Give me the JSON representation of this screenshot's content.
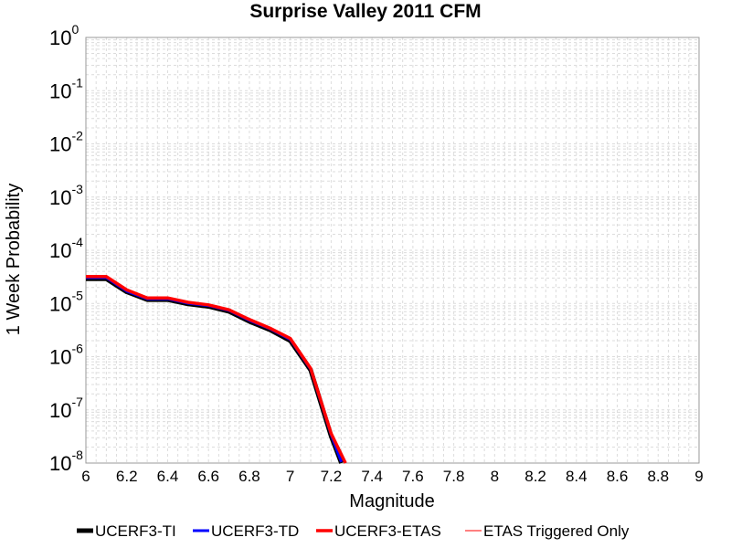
{
  "chart_data": {
    "type": "line",
    "title": "Surprise Valley 2011 CFM",
    "xlabel": "Magnitude",
    "ylabel": "1 Week Probability",
    "xlim": [
      6,
      9
    ],
    "ylim": [
      1e-08,
      1
    ],
    "yscale": "log",
    "grid": true,
    "legend_position": "bottom",
    "x_ticks": [
      "6",
      "6.2",
      "6.4",
      "6.6",
      "6.8",
      "7",
      "7.2",
      "7.4",
      "7.6",
      "7.8",
      "8",
      "8.2",
      "8.4",
      "8.6",
      "8.8",
      "9"
    ],
    "y_ticks": [
      {
        "base": "10",
        "exp": "0"
      },
      {
        "base": "10",
        "exp": "-1"
      },
      {
        "base": "10",
        "exp": "-2"
      },
      {
        "base": "10",
        "exp": "-3"
      },
      {
        "base": "10",
        "exp": "-4"
      },
      {
        "base": "10",
        "exp": "-5"
      },
      {
        "base": "10",
        "exp": "-6"
      },
      {
        "base": "10",
        "exp": "-7"
      },
      {
        "base": "10",
        "exp": "-8"
      }
    ],
    "series": [
      {
        "name": "UCERF3-TI",
        "color": "#000000",
        "x": [
          6.0,
          6.1,
          6.2,
          6.3,
          6.4,
          6.5,
          6.6,
          6.7,
          6.8,
          6.9,
          7.0,
          7.1,
          7.2,
          7.25
        ],
        "y": [
          2.9e-05,
          2.9e-05,
          1.65e-05,
          1.18e-05,
          1.18e-05,
          9.8e-06,
          8.8e-06,
          7.1e-06,
          4.6e-06,
          3.2e-06,
          2e-06,
          5.6e-07,
          3.2e-08,
          1e-08
        ]
      },
      {
        "name": "UCERF3-TD",
        "color": "#0000ff",
        "x": [
          6.0,
          6.1,
          6.2,
          6.3,
          6.4,
          6.5,
          6.6,
          6.7,
          6.8,
          6.9,
          7.0,
          7.1,
          7.2,
          7.25
        ],
        "y": [
          3.05e-05,
          3.05e-05,
          1.7e-05,
          1.22e-05,
          1.22e-05,
          1.01e-05,
          9.1e-06,
          7.4e-06,
          4.8e-06,
          3.35e-06,
          2.1e-06,
          5.8e-07,
          3.4e-08,
          1.05e-08
        ]
      },
      {
        "name": "UCERF3-ETAS",
        "color": "#ff0000",
        "x": [
          6.0,
          6.1,
          6.2,
          6.3,
          6.4,
          6.5,
          6.6,
          6.7,
          6.8,
          6.9,
          7.0,
          7.1,
          7.2,
          7.27
        ],
        "y": [
          3.2e-05,
          3.2e-05,
          1.8e-05,
          1.27e-05,
          1.27e-05,
          1.05e-05,
          9.4e-06,
          7.6e-06,
          5e-06,
          3.45e-06,
          2.2e-06,
          6e-07,
          3.6e-08,
          1e-08
        ]
      },
      {
        "name": "ETAS Triggered Only",
        "color": "#ff8080",
        "x": [],
        "y": []
      }
    ]
  }
}
